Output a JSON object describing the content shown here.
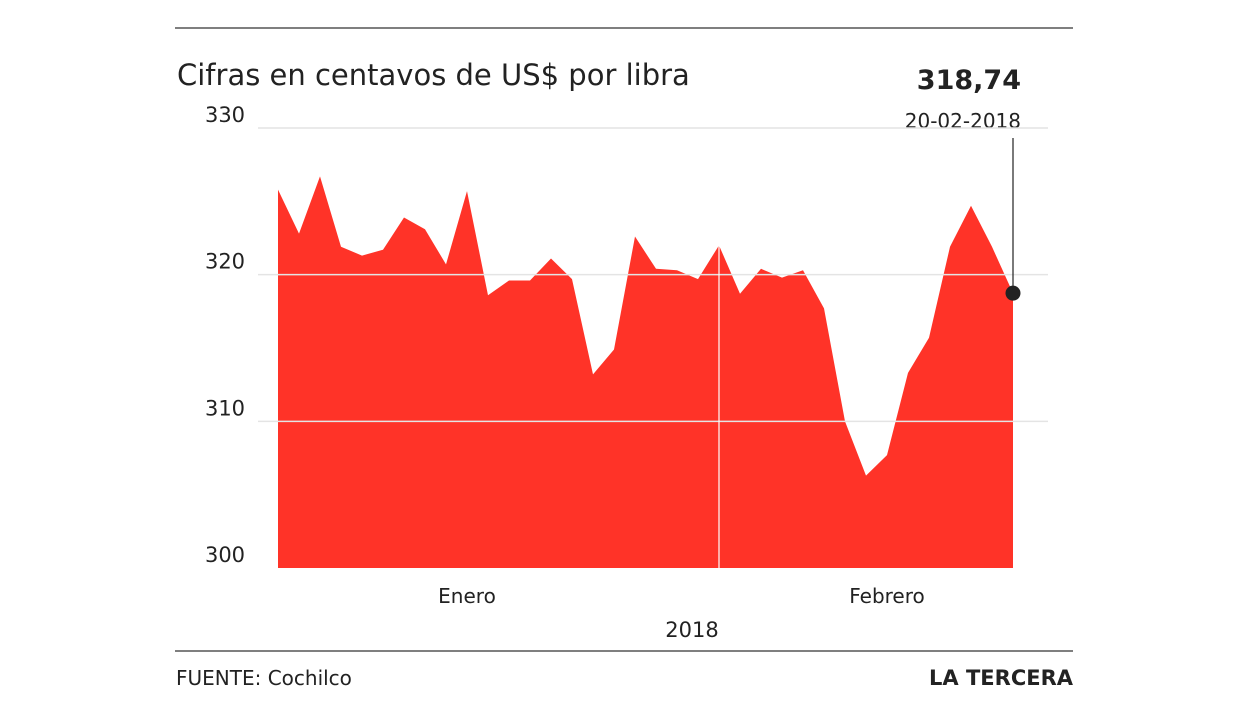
{
  "chart_data": {
    "type": "area",
    "title": "Cifras en centavos de US$ por libra",
    "categories": [
      null,
      null,
      null,
      null,
      null,
      null,
      null,
      null,
      null,
      "Enero",
      null,
      null,
      null,
      null,
      null,
      null,
      null,
      null,
      null,
      null,
      null,
      null,
      null,
      null,
      null,
      null,
      null,
      null,
      null,
      "Febrero",
      null,
      null,
      null,
      null,
      null,
      null
    ],
    "x_label": "2018",
    "values": [
      325.8,
      322.8,
      326.7,
      321.9,
      321.3,
      321.7,
      323.9,
      323.1,
      320.7,
      325.7,
      318.6,
      319.6,
      319.6,
      321.1,
      319.7,
      313.2,
      314.9,
      322.6,
      320.4,
      320.3,
      319.7,
      322.0,
      318.7,
      320.4,
      319.8,
      320.3,
      317.7,
      310.0,
      306.3,
      307.7,
      313.3,
      315.7,
      321.9,
      324.7,
      321.9,
      318.74
    ],
    "value_labels": [
      null,
      null,
      null,
      null,
      null,
      null,
      null,
      null,
      null,
      null,
      null,
      null,
      null,
      null,
      null,
      null,
      null,
      null,
      null,
      null,
      null,
      null,
      null,
      null,
      null,
      null,
      null,
      null,
      null,
      null,
      null,
      null,
      null,
      null,
      null,
      "318,74"
    ],
    "annotation_date": "20-02-2018",
    "color": "#ff3328",
    "ylim": [
      300,
      330
    ],
    "yticks": [
      300,
      310,
      320,
      330
    ],
    "grid": true,
    "source": "FUENTE: Cochilco",
    "brand": "LA TERCERA"
  }
}
